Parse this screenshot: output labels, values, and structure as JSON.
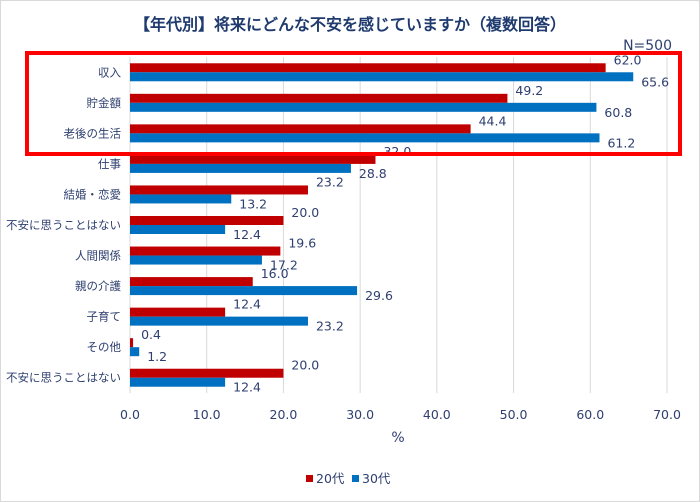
{
  "chart_data": {
    "type": "bar",
    "orientation": "horizontal",
    "title": "【年代別】将来にどんな不安を感じていますか（複数回答）",
    "annotation": "N=500",
    "xlabel": "%",
    "ylabel": "",
    "xlim": [
      0,
      70
    ],
    "xticks": [
      "0.0",
      "10.0",
      "20.0",
      "30.0",
      "40.0",
      "50.0",
      "60.0",
      "70.0"
    ],
    "grid": true,
    "legend_position": "bottom",
    "highlight_box_categories": [
      "収入",
      "貯金額",
      "老後の生活"
    ],
    "highlight_color": "#ff0000",
    "categories": [
      "収入",
      "貯金額",
      "老後の生活",
      "仕事",
      "結婚・恋愛",
      "不安に思うことはない",
      "人間関係",
      "親の介護",
      "子育て",
      "その他",
      "不安に思うことはない"
    ],
    "series": [
      {
        "name": "20代",
        "color": "#c00000",
        "values": [
          62.0,
          49.2,
          44.4,
          32.0,
          23.2,
          20.0,
          19.6,
          16.0,
          12.4,
          0.4,
          20.0
        ]
      },
      {
        "name": "30代",
        "color": "#0070c0",
        "values": [
          65.6,
          60.8,
          61.2,
          28.8,
          13.2,
          12.4,
          17.2,
          29.6,
          23.2,
          1.2,
          12.4
        ]
      }
    ]
  }
}
